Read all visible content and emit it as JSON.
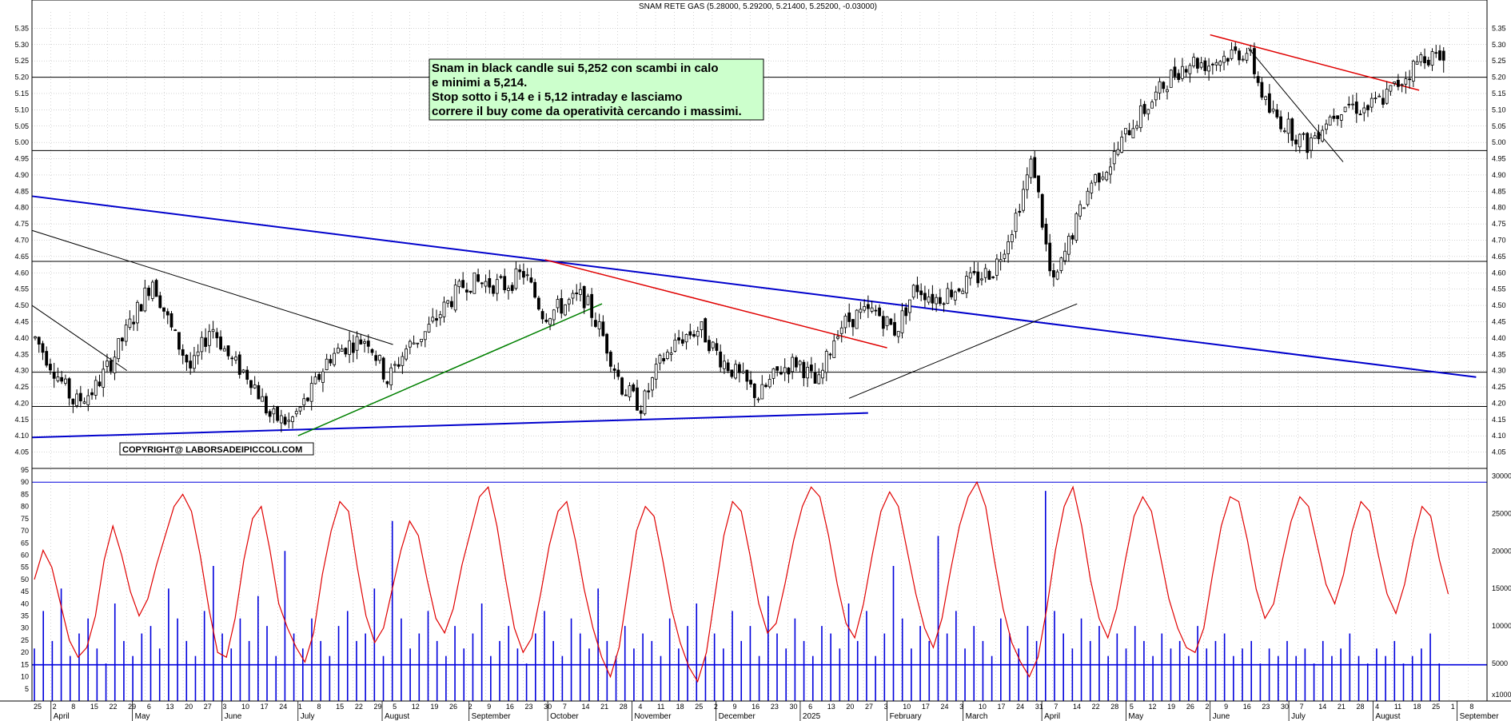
{
  "header": {
    "title": "SNAM RETE GAS (5.28000, 5.29200, 5.21400, 5.25200, -0.03000)"
  },
  "annotation": {
    "lines": [
      "Snam in black candle sui 5,252 con scambi in calo",
      "e minimi a 5,214.",
      "Stop sotto i 5,14 e i 5,12 intraday e lasciamo",
      "correre il buy come da operatività cercando i massimi."
    ]
  },
  "copyright": "COPYRIGHT@ LABORSADEIPICCOLI.COM",
  "colors": {
    "candle": "#000000",
    "support_resistance": "#000000",
    "blue_trend": "#0000cc",
    "green_trend": "#008000",
    "red_trend": "#e00000",
    "oscillator": "#e00000",
    "volume": "#0000dd",
    "grid": "#a8a8a8"
  },
  "chart_data": [
    {
      "type": "candlestick",
      "title": "SNAM RETE GAS (5.28000, 5.29200, 5.21400, 5.25200, -0.03000)",
      "last_bar": {
        "open": 5.28,
        "high": 5.292,
        "low": 5.214,
        "close": 5.252,
        "change": -0.03
      },
      "ylim": [
        4.0,
        5.4
      ],
      "y_ticks": [
        "4.05",
        "4.10",
        "4.15",
        "4.20",
        "4.25",
        "4.30",
        "4.35",
        "4.40",
        "4.45",
        "4.50",
        "4.55",
        "4.60",
        "4.65",
        "4.70",
        "4.75",
        "4.80",
        "4.85",
        "4.90",
        "4.95",
        "5.00",
        "5.05",
        "5.10",
        "5.15",
        "5.20",
        "5.25",
        "5.30",
        "5.35"
      ],
      "horizontal_levels": [
        4.19,
        4.295,
        4.635,
        4.975,
        5.2
      ],
      "price_path_weekly": [
        4.4,
        4.3,
        4.2,
        4.24,
        4.34,
        4.46,
        4.58,
        4.42,
        4.3,
        4.44,
        4.33,
        4.28,
        4.16,
        4.14,
        4.22,
        4.34,
        4.38,
        4.4,
        4.27,
        4.37,
        4.42,
        4.5,
        4.57,
        4.57,
        4.56,
        4.6,
        4.47,
        4.5,
        4.53,
        4.41,
        4.25,
        4.19,
        4.33,
        4.4,
        4.43,
        4.34,
        4.28,
        4.22,
        4.3,
        4.33,
        4.25,
        4.43,
        4.47,
        4.48,
        4.42,
        4.56,
        4.52,
        4.55,
        4.58,
        4.61,
        4.75,
        4.95,
        4.55,
        4.72,
        4.88,
        4.94,
        5.05,
        5.12,
        5.2,
        5.25,
        5.24,
        5.27,
        5.28,
        5.1,
        5.05,
        4.99,
        5.07,
        5.12,
        5.1,
        5.14,
        5.2,
        5.27,
        5.25
      ],
      "trendlines": [
        {
          "color": "blue",
          "points": [
            [
              "2024-03-25",
              4.835
            ],
            [
              "2025-09-08",
              4.28
            ]
          ]
        },
        {
          "color": "blue",
          "points": [
            [
              "2024-03-25",
              4.095
            ],
            [
              "2025-01-27",
              4.17
            ]
          ]
        },
        {
          "color": "black",
          "points": [
            [
              "2024-03-25",
              4.73
            ],
            [
              "2024-08-05",
              4.38
            ]
          ]
        },
        {
          "color": "black",
          "points": [
            [
              "2024-03-25",
              4.5
            ],
            [
              "2024-04-29",
              4.3
            ]
          ]
        },
        {
          "color": "green",
          "points": [
            [
              "2024-07-01",
              4.1
            ],
            [
              "2024-10-21",
              4.505
            ]
          ]
        },
        {
          "color": "red",
          "points": [
            [
              "2024-09-30",
              4.64
            ],
            [
              "2025-02-03",
              4.37
            ]
          ]
        },
        {
          "color": "black",
          "points": [
            [
              "2025-01-20",
              4.215
            ],
            [
              "2025-04-14",
              4.505
            ]
          ]
        },
        {
          "color": "red",
          "points": [
            [
              "2025-06-02",
              5.33
            ],
            [
              "2025-08-18",
              5.16
            ]
          ]
        },
        {
          "color": "black",
          "points": [
            [
              "2025-06-16",
              5.29
            ],
            [
              "2025-07-21",
              4.94
            ]
          ]
        }
      ]
    },
    {
      "type": "line",
      "name": "oscillator",
      "ylim": [
        0,
        95
      ],
      "y_ticks": [
        "5",
        "10",
        "15",
        "20",
        "25",
        "30",
        "35",
        "40",
        "45",
        "50",
        "55",
        "60",
        "65",
        "70",
        "75",
        "80",
        "85",
        "90",
        "95"
      ],
      "reference_lines": [
        15,
        90
      ],
      "values": [
        50,
        62,
        55,
        40,
        25,
        18,
        22,
        35,
        58,
        72,
        60,
        45,
        35,
        42,
        56,
        68,
        80,
        85,
        78,
        60,
        38,
        20,
        18,
        34,
        58,
        75,
        80,
        62,
        40,
        30,
        22,
        16,
        28,
        52,
        70,
        82,
        78,
        55,
        35,
        24,
        30,
        46,
        62,
        74,
        68,
        50,
        34,
        28,
        38,
        56,
        70,
        84,
        88,
        72,
        50,
        30,
        20,
        26,
        44,
        64,
        78,
        82,
        66,
        46,
        30,
        18,
        10,
        22,
        46,
        70,
        80,
        76,
        58,
        38,
        24,
        14,
        8,
        20,
        44,
        68,
        82,
        78,
        60,
        40,
        28,
        32,
        48,
        66,
        80,
        88,
        84,
        68,
        48,
        32,
        26,
        40,
        60,
        78,
        86,
        80,
        62,
        44,
        30,
        22,
        34,
        54,
        72,
        84,
        90,
        80,
        58,
        38,
        24,
        16,
        10,
        18,
        38,
        62,
        80,
        88,
        72,
        50,
        34,
        26,
        38,
        58,
        76,
        84,
        78,
        60,
        42,
        30,
        22,
        20,
        30,
        52,
        72,
        84,
        82,
        66,
        46,
        34,
        40,
        58,
        74,
        84,
        80,
        64,
        48,
        40,
        52,
        70,
        82,
        78,
        60,
        44,
        36,
        48,
        66,
        80,
        76,
        58,
        44
      ],
      "bars_series": "volume"
    },
    {
      "type": "bar",
      "name": "volume",
      "y_axis_right_ticks": [
        "5000",
        "10000",
        "15000",
        "20000",
        "25000",
        "30000"
      ],
      "y_axis_right_ylim": [
        0,
        31000
      ],
      "y_axis_right_units": "x1000",
      "reference_line": 4800,
      "values": [
        7000,
        12000,
        8000,
        15000,
        6000,
        9000,
        11000,
        7000,
        5000,
        13000,
        8000,
        6000,
        9000,
        10000,
        7000,
        15000,
        11000,
        8000,
        6000,
        12000,
        18000,
        9000,
        7000,
        11000,
        8000,
        14000,
        10000,
        6000,
        20000,
        9000,
        7000,
        11000,
        8000,
        6000,
        10000,
        12000,
        8000,
        9000,
        15000,
        6000,
        24000,
        11000,
        7000,
        9000,
        12000,
        8000,
        6000,
        10000,
        7000,
        9000,
        13000,
        6000,
        8000,
        10000,
        7000,
        5000,
        9000,
        12000,
        8000,
        6000,
        11000,
        9000,
        7000,
        15000,
        8000,
        6000,
        10000,
        7000,
        9000,
        8000,
        6000,
        11000,
        7000,
        10000,
        13000,
        6000,
        9000,
        7000,
        12000,
        8000,
        10000,
        6000,
        14000,
        9000,
        7000,
        11000,
        8000,
        6000,
        10000,
        9000,
        7000,
        13000,
        8000,
        12000,
        6000,
        9000,
        18000,
        11000,
        7000,
        10000,
        8000,
        22000,
        9000,
        12000,
        7000,
        10000,
        8000,
        6000,
        11000,
        9000,
        7000,
        10000,
        8000,
        28000,
        12000,
        9000,
        7000,
        11000,
        8000,
        10000,
        6000,
        9000,
        7000,
        10000,
        8000,
        6000,
        9000,
        7000,
        8000,
        6000,
        10000,
        7000,
        8000,
        9000,
        6000,
        7000,
        8000,
        5000,
        7000,
        6000,
        8000,
        6000,
        7000,
        5000,
        8000,
        6000,
        7000,
        9000,
        6000,
        5000,
        7000,
        6000,
        8000,
        5000,
        6000,
        7000,
        9000,
        5000
      ]
    }
  ],
  "months": [
    "April",
    "May",
    "June",
    "July",
    "August",
    "September",
    "October",
    "November",
    "December",
    "2025",
    "February",
    "March",
    "April",
    "May",
    "June",
    "July",
    "August",
    "September"
  ],
  "day_labels": [
    "25",
    "2",
    "8",
    "15",
    "22",
    "29",
    "6",
    "13",
    "20",
    "27",
    "3",
    "10",
    "17",
    "24",
    "1",
    "8",
    "15",
    "22",
    "29",
    "5",
    "12",
    "19",
    "26",
    "2",
    "9",
    "16",
    "23",
    "30",
    "7",
    "14",
    "21",
    "28",
    "4",
    "11",
    "18",
    "25",
    "2",
    "9",
    "16",
    "23",
    "30",
    "6",
    "13",
    "20",
    "27",
    "3",
    "10",
    "17",
    "24",
    "3",
    "10",
    "17",
    "24",
    "31",
    "7",
    "14",
    "22",
    "28",
    "5",
    "12",
    "19",
    "26",
    "2",
    "9",
    "16",
    "23",
    "30",
    "7",
    "14",
    "21",
    "28",
    "4",
    "11",
    "18",
    "25",
    "1",
    "8"
  ]
}
